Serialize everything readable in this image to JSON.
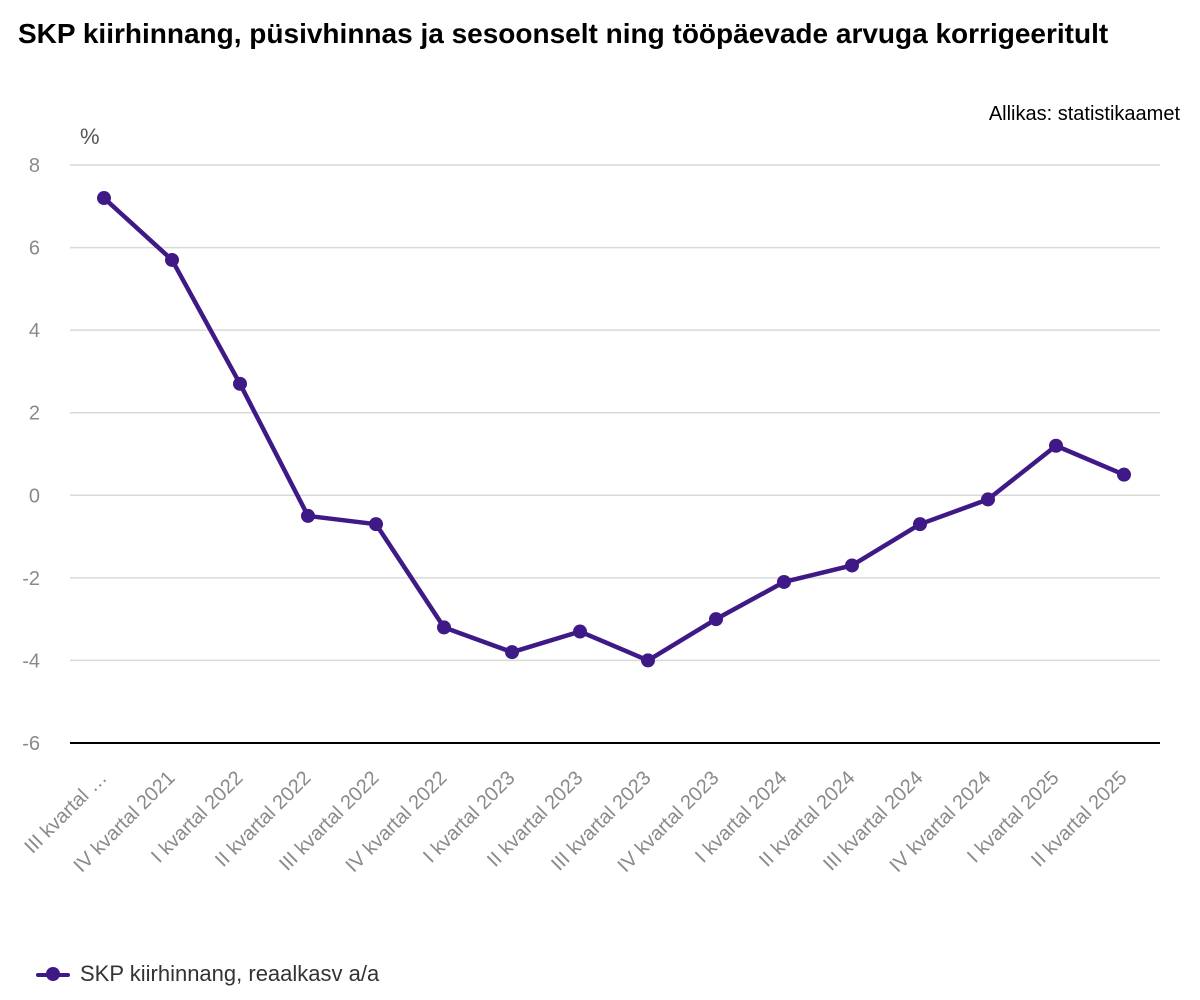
{
  "title": "SKP kiirhinnang, püsivhinnas ja sesoonselt ning tööpäevade arvuga korrigeeritult",
  "source": "Allikas: statistikaamet",
  "colors": {
    "series": "#3f1a86",
    "grid": "#d9d9d9",
    "axis_line": "#000000",
    "tick_text": "#8a8a8a",
    "unit_text": "#555555"
  },
  "chart_data": {
    "type": "line",
    "ylabel": "%",
    "ylim": [
      -6,
      8
    ],
    "yticks": [
      8,
      6,
      4,
      2,
      0,
      -2,
      -4,
      -6
    ],
    "categories": [
      "III kvartal …",
      "IV kvartal 2021",
      "I kvartal 2022",
      "II kvartal 2022",
      "III kvartal 2022",
      "IV kvartal 2022",
      "I kvartal 2023",
      "II kvartal 2023",
      "III kvartal 2023",
      "IV kvartal 2023",
      "I kvartal 2024",
      "II kvartal 2024",
      "III kvartal 2024",
      "IV kvartal 2024",
      "I kvartal 2025",
      "II kvartal 2025"
    ],
    "series": [
      {
        "name": "SKP kiirhinnang, reaalkasv a/a",
        "values": [
          7.2,
          5.7,
          2.7,
          -0.5,
          -0.7,
          -3.2,
          -3.8,
          -3.3,
          -4.0,
          -3.0,
          -2.1,
          -1.7,
          -0.7,
          -0.1,
          1.2,
          0.5
        ]
      }
    ],
    "grid": true,
    "legend": "bottom-left"
  }
}
